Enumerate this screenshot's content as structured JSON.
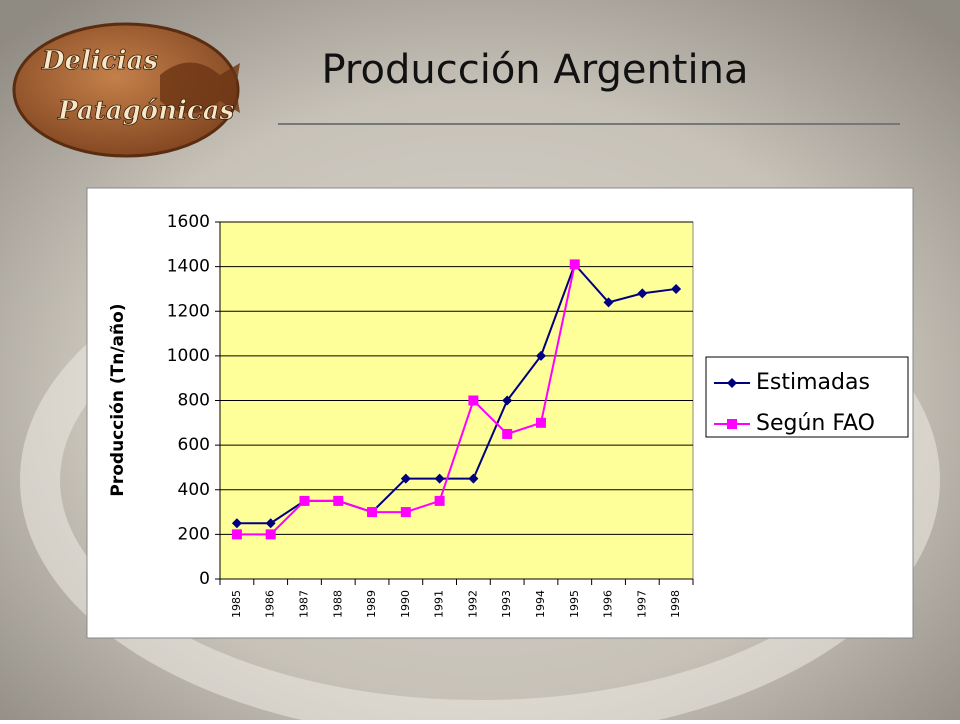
{
  "logo": {
    "line1": "Delicias",
    "line2": "Patagónicas"
  },
  "chart_data": {
    "type": "line",
    "title": "Producción Argentina",
    "y_label": "Producción (Tn/año)",
    "categories": [
      "1985",
      "1986",
      "1987",
      "1988",
      "1989",
      "1990",
      "1991",
      "1992",
      "1993",
      "1994",
      "1995",
      "1996",
      "1997",
      "1998"
    ],
    "series": [
      {
        "name": "Estimadas",
        "color": "#000080",
        "marker": "diamond",
        "values": [
          250,
          250,
          350,
          350,
          300,
          450,
          450,
          450,
          800,
          1000,
          1410,
          1240,
          1280,
          1300
        ]
      },
      {
        "name": "Según FAO",
        "color": "#ff00ff",
        "marker": "square",
        "values": [
          200,
          200,
          350,
          350,
          300,
          300,
          350,
          800,
          650,
          700,
          1410,
          null,
          null,
          null
        ]
      }
    ],
    "ylim": [
      0,
      1600
    ],
    "yticks": [
      0,
      200,
      400,
      600,
      800,
      1000,
      1200,
      1400,
      1600
    ],
    "grid": true,
    "legend": "right",
    "plot_background": "#ffff99"
  }
}
